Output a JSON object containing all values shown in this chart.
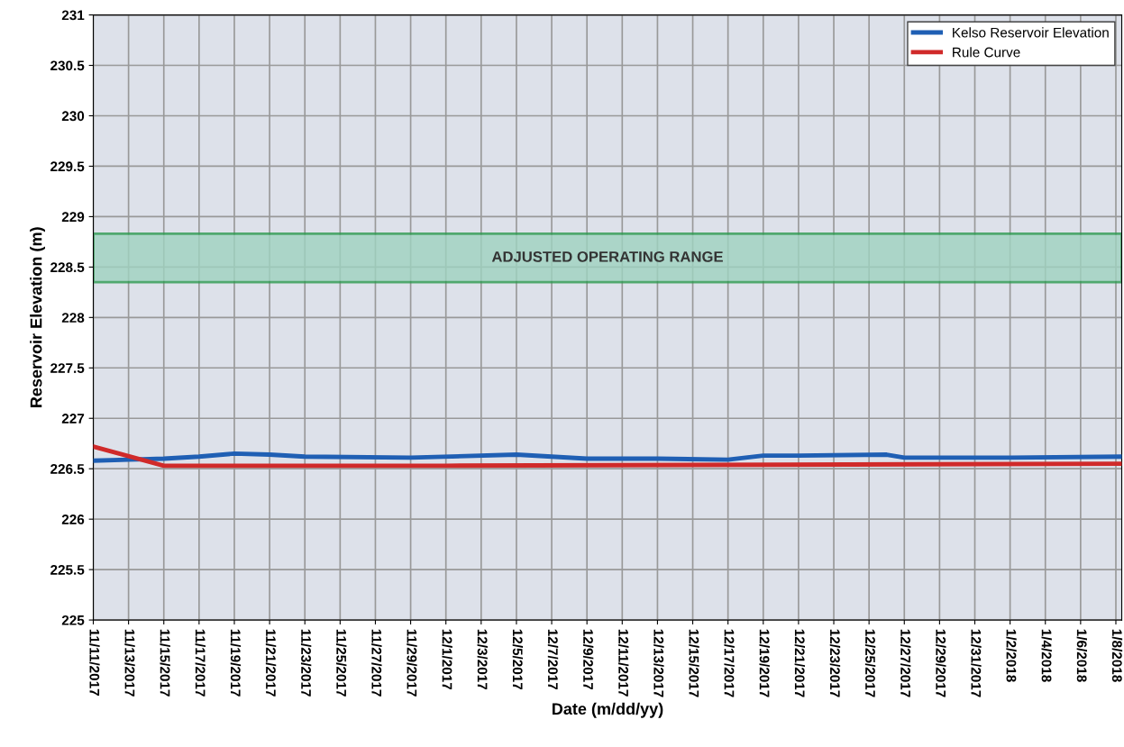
{
  "chart_data": {
    "type": "line",
    "xlabel": "Date (m/dd/yy)",
    "ylabel": "Reservoir Elevation (m)",
    "xlim": [
      "2017-11-11",
      "2018-01-08T08:00"
    ],
    "xticks": [
      {
        "value": "2017-11-11",
        "label": "11/11/2017"
      },
      {
        "value": "2017-11-13",
        "label": "11/13/2017"
      },
      {
        "value": "2017-11-15",
        "label": "11/15/2017"
      },
      {
        "value": "2017-11-17",
        "label": "11/17/2017"
      },
      {
        "value": "2017-11-19",
        "label": "11/19/2017"
      },
      {
        "value": "2017-11-21",
        "label": "11/21/2017"
      },
      {
        "value": "2017-11-23",
        "label": "11/23/2017"
      },
      {
        "value": "2017-11-25",
        "label": "11/25/2017"
      },
      {
        "value": "2017-11-27",
        "label": "11/27/2017"
      },
      {
        "value": "2017-11-29",
        "label": "11/29/2017"
      },
      {
        "value": "2017-12-01",
        "label": "12/1/2017"
      },
      {
        "value": "2017-12-03",
        "label": "12/3/2017"
      },
      {
        "value": "2017-12-05",
        "label": "12/5/2017"
      },
      {
        "value": "2017-12-07",
        "label": "12/7/2017"
      },
      {
        "value": "2017-12-09",
        "label": "12/9/2017"
      },
      {
        "value": "2017-12-11",
        "label": "12/11/2017"
      },
      {
        "value": "2017-12-13",
        "label": "12/13/2017"
      },
      {
        "value": "2017-12-15",
        "label": "12/15/2017"
      },
      {
        "value": "2017-12-17",
        "label": "12/17/2017"
      },
      {
        "value": "2017-12-19",
        "label": "12/19/2017"
      },
      {
        "value": "2017-12-21",
        "label": "12/21/2017"
      },
      {
        "value": "2017-12-23",
        "label": "12/23/2017"
      },
      {
        "value": "2017-12-25",
        "label": "12/25/2017"
      },
      {
        "value": "2017-12-27",
        "label": "12/27/2017"
      },
      {
        "value": "2017-12-29",
        "label": "12/29/2017"
      },
      {
        "value": "2017-12-31",
        "label": "12/31/2017"
      },
      {
        "value": "2018-01-02",
        "label": "1/2/2018"
      },
      {
        "value": "2018-01-04",
        "label": "1/4/2018"
      },
      {
        "value": "2018-01-06",
        "label": "1/6/2018"
      },
      {
        "value": "2018-01-08",
        "label": "1/8/2018"
      }
    ],
    "ylim": [
      225,
      231
    ],
    "yticks": [
      225,
      225.5,
      226,
      226.5,
      227,
      227.5,
      228,
      228.5,
      229,
      229.5,
      230,
      230.5,
      231
    ],
    "grid": true,
    "legend": "top right",
    "line_style": "solid",
    "marker": "none",
    "bands": [
      {
        "axis": "y",
        "from": 228.35,
        "to": 228.83,
        "label": "ADJUSTED OPERATING RANGE",
        "color": "#9fd3c0"
      }
    ],
    "series": [
      {
        "name": "Kelso Reservoir Elevation",
        "color": "#1f5fb4",
        "x": [
          "2017-11-11",
          "2017-11-13",
          "2017-11-15",
          "2017-11-17",
          "2017-11-19",
          "2017-11-21",
          "2017-11-23",
          "2017-11-29",
          "2017-12-05",
          "2017-12-07",
          "2017-12-09",
          "2017-12-13",
          "2017-12-17",
          "2017-12-19",
          "2017-12-21",
          "2017-12-26",
          "2017-12-27",
          "2018-01-02",
          "2018-01-08T08:00"
        ],
        "values": [
          226.58,
          226.59,
          226.6,
          226.62,
          226.65,
          226.64,
          226.62,
          226.61,
          226.64,
          226.62,
          226.6,
          226.6,
          226.59,
          226.63,
          226.63,
          226.64,
          226.61,
          226.61,
          226.62
        ]
      },
      {
        "name": "Rule Curve",
        "color": "#d02a2a",
        "x": [
          "2017-11-11",
          "2017-11-15",
          "2017-12-01",
          "2017-12-20",
          "2018-01-08T08:00"
        ],
        "values": [
          226.72,
          226.53,
          226.53,
          226.54,
          226.55
        ]
      }
    ]
  }
}
